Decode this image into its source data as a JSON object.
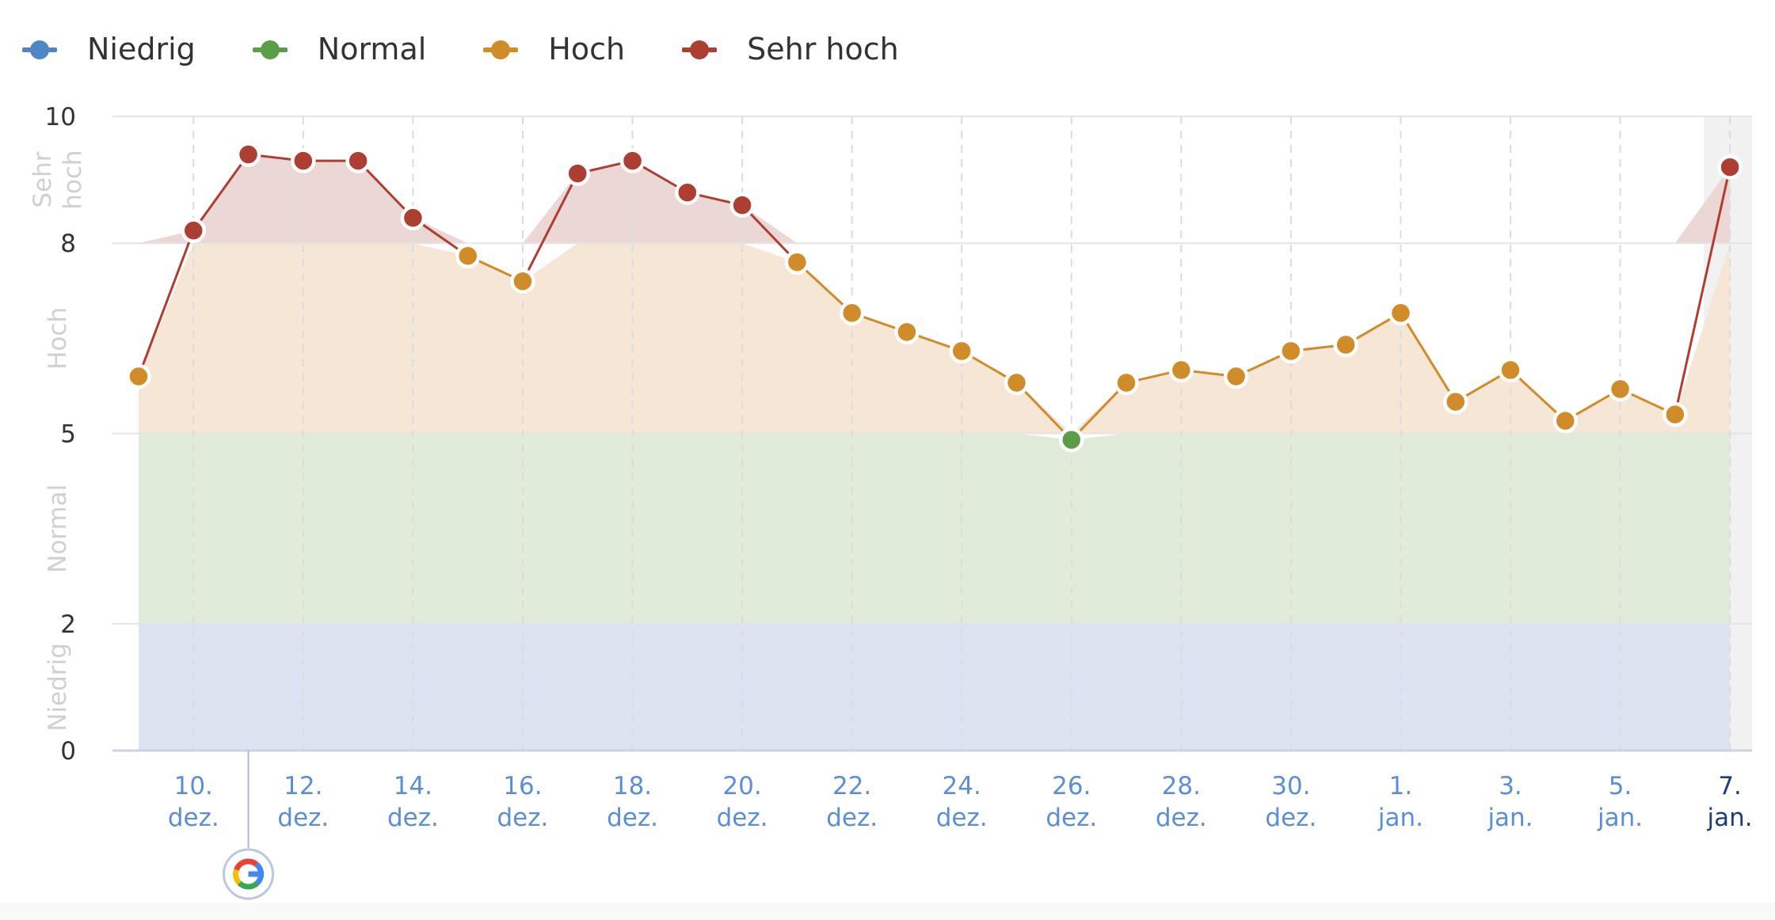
{
  "legend": {
    "items": [
      {
        "label": "Niedrig",
        "color": "#4f86c6"
      },
      {
        "label": "Normal",
        "color": "#5b9e48"
      },
      {
        "label": "Hoch",
        "color": "#d08c29"
      },
      {
        "label": "Sehr hoch",
        "color": "#ad3e32"
      }
    ]
  },
  "chart_data": {
    "type": "line",
    "title": "",
    "xlabel": "",
    "ylabel": "",
    "ylim": [
      0,
      10
    ],
    "y_ticks": [
      "0",
      "2",
      "5",
      "8",
      "10"
    ],
    "bands": [
      {
        "name": "Niedrig",
        "lines": [
          "Niedrig"
        ],
        "range": [
          0,
          2
        ],
        "fill": "#dbe4f0"
      },
      {
        "name": "Normal",
        "lines": [
          "Normal"
        ],
        "range": [
          2,
          5
        ],
        "fill": "#e0ebd9"
      },
      {
        "name": "Hoch",
        "lines": [
          "Hoch"
        ],
        "range": [
          5,
          8
        ],
        "fill": "#f5e6d6"
      },
      {
        "name": "Sehr hoch",
        "lines": [
          "Sehr",
          "hoch"
        ],
        "range": [
          8,
          10
        ],
        "fill": "#ebd7d4"
      }
    ],
    "category_colors": {
      "Niedrig": "#4f86c6",
      "Normal": "#5b9e48",
      "Hoch": "#d08c29",
      "Sehr hoch": "#ad3e32"
    },
    "x_tick_labels": [
      {
        "line1": "10.",
        "line2": "dez.",
        "index": 1
      },
      {
        "line1": "12.",
        "line2": "dez.",
        "index": 3
      },
      {
        "line1": "14.",
        "line2": "dez.",
        "index": 5
      },
      {
        "line1": "16.",
        "line2": "dez.",
        "index": 7
      },
      {
        "line1": "18.",
        "line2": "dez.",
        "index": 9
      },
      {
        "line1": "20.",
        "line2": "dez.",
        "index": 11
      },
      {
        "line1": "22.",
        "line2": "dez.",
        "index": 13
      },
      {
        "line1": "24.",
        "line2": "dez.",
        "index": 15
      },
      {
        "line1": "26.",
        "line2": "dez.",
        "index": 17
      },
      {
        "line1": "28.",
        "line2": "dez.",
        "index": 19
      },
      {
        "line1": "30.",
        "line2": "dez.",
        "index": 21
      },
      {
        "line1": "1.",
        "line2": "jan.",
        "index": 23
      },
      {
        "line1": "3.",
        "line2": "jan.",
        "index": 25
      },
      {
        "line1": "5.",
        "line2": "jan.",
        "index": 27
      },
      {
        "line1": "7.",
        "line2": "jan.",
        "index": 29,
        "current": true
      }
    ],
    "series": [
      {
        "x": [
          "9. dez.",
          "10. dez.",
          "11. dez.",
          "12. dez.",
          "13. dez.",
          "14. dez.",
          "15. dez.",
          "16. dez.",
          "17. dez.",
          "18. dez.",
          "19. dez.",
          "20. dez.",
          "21. dez.",
          "22. dez.",
          "23. dez.",
          "24. dez.",
          "25. dez.",
          "26. dez.",
          "27. dez.",
          "28. dez.",
          "29. dez.",
          "30. dez.",
          "31. dez.",
          "1. jan.",
          "2. jan.",
          "3. jan.",
          "4. jan.",
          "5. jan.",
          "6. jan.",
          "7. jan."
        ],
        "values": [
          5.9,
          8.2,
          9.4,
          9.3,
          9.3,
          8.4,
          7.8,
          7.4,
          9.1,
          9.3,
          8.8,
          8.6,
          7.7,
          6.9,
          6.6,
          6.3,
          5.8,
          4.9,
          5.8,
          6.0,
          5.9,
          6.3,
          6.4,
          6.9,
          5.5,
          6.0,
          5.2,
          5.7,
          5.3,
          9.2
        ]
      }
    ],
    "annotation": {
      "icon": "google-g-icon",
      "index": 2
    },
    "grid": {
      "y": true,
      "x_dashed": true
    },
    "legend_position": "top-left"
  }
}
